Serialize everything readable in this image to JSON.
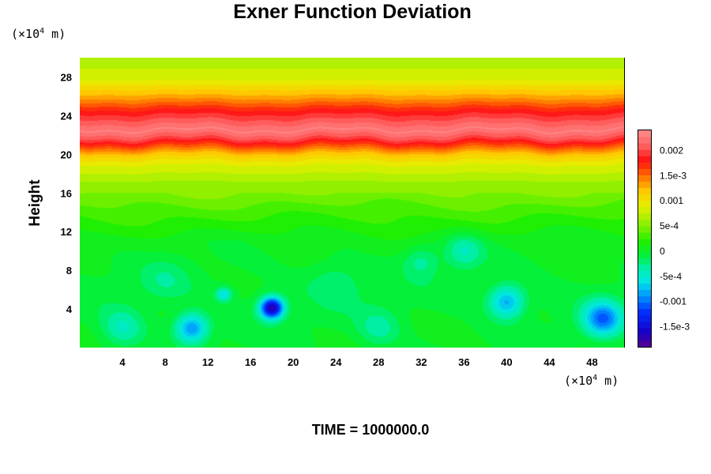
{
  "chart_data": {
    "type": "heatmap",
    "subtype": "filled-contour",
    "title": "Exner Function Deviation",
    "xlabel": "",
    "ylabel": "Height",
    "x_unit": "(×10⁴ m)",
    "y_unit": "(×10⁴ m)",
    "x_unit_base": "(×10",
    "x_unit_exp": "4",
    "x_unit_tail": " m)",
    "y_unit_base": "(×10",
    "y_unit_exp": "4",
    "y_unit_tail": " m)",
    "xlim": [
      0,
      51
    ],
    "ylim": [
      0,
      30
    ],
    "xticks": [
      4,
      8,
      12,
      16,
      20,
      24,
      28,
      32,
      36,
      40,
      44,
      48
    ],
    "yticks": [
      4,
      8,
      12,
      16,
      20,
      24,
      28
    ],
    "colorbar": {
      "min": -0.0019,
      "max": 0.0024,
      "ticks": [
        {
          "value": 0.002,
          "label": "0.002"
        },
        {
          "value": 0.0015,
          "label": "1.5e-3"
        },
        {
          "value": 0.001,
          "label": "0.001"
        },
        {
          "value": 0.0005,
          "label": "5e-4"
        },
        {
          "value": 0,
          "label": "0"
        },
        {
          "value": -0.0005,
          "label": "-5e-4"
        },
        {
          "value": -0.001,
          "label": "-0.001"
        },
        {
          "value": -0.0015,
          "label": "-1.5e-3"
        }
      ],
      "stops": [
        {
          "value": -0.0019,
          "color": "#5a0090"
        },
        {
          "value": -0.0016,
          "color": "#1800c8"
        },
        {
          "value": -0.0012,
          "color": "#0030ff"
        },
        {
          "value": -0.0009,
          "color": "#0090ff"
        },
        {
          "value": -0.0006,
          "color": "#00e6e6"
        },
        {
          "value": -0.0003,
          "color": "#00f0a0"
        },
        {
          "value": -0.0001,
          "color": "#00f040"
        },
        {
          "value": 0.0002,
          "color": "#20f000"
        },
        {
          "value": 0.0005,
          "color": "#80f000"
        },
        {
          "value": 0.0009,
          "color": "#e6f000"
        },
        {
          "value": 0.0012,
          "color": "#ffc800"
        },
        {
          "value": 0.0015,
          "color": "#ff7000"
        },
        {
          "value": 0.0018,
          "color": "#ff1010"
        },
        {
          "value": 0.0021,
          "color": "#ff6060"
        },
        {
          "value": 0.0024,
          "color": "#ff8c8c"
        }
      ]
    },
    "layers": [
      {
        "y": 0,
        "value": 0.0
      },
      {
        "y": 6,
        "value": -5e-05
      },
      {
        "y": 11,
        "value": 5e-05
      },
      {
        "y": 14,
        "value": 0.0003
      },
      {
        "y": 17,
        "value": 0.0006
      },
      {
        "y": 19,
        "value": 0.0009
      },
      {
        "y": 20,
        "value": 0.0012
      },
      {
        "y": 21,
        "value": 0.0017
      },
      {
        "y": 21.6,
        "value": 0.002
      },
      {
        "y": 22.5,
        "value": 0.0023
      },
      {
        "y": 23.3,
        "value": 0.0021
      },
      {
        "y": 24.5,
        "value": 0.0018
      },
      {
        "y": 26,
        "value": 0.0013
      },
      {
        "y": 28,
        "value": 0.0008
      },
      {
        "y": 30,
        "value": 0.0007
      }
    ],
    "features": [
      {
        "x": 10.5,
        "y": 2.0,
        "value": -0.0009,
        "radius": 1.5
      },
      {
        "x": 18.0,
        "y": 4.1,
        "value": -0.0017,
        "radius": 1.1
      },
      {
        "x": 40.0,
        "y": 4.7,
        "value": -0.0008,
        "radius": 1.6
      },
      {
        "x": 49.0,
        "y": 3.0,
        "value": -0.001,
        "radius": 1.8
      },
      {
        "x": 13.5,
        "y": 5.5,
        "value": -0.0006,
        "radius": 0.7
      },
      {
        "x": 4.0,
        "y": 2.0,
        "value": -0.0004,
        "radius": 2.0
      },
      {
        "x": 28.0,
        "y": 2.0,
        "value": -0.0003,
        "radius": 2.0
      },
      {
        "x": 36.0,
        "y": 10.0,
        "value": -0.0004,
        "radius": 1.8
      },
      {
        "x": 32.0,
        "y": 9.0,
        "value": -0.0003,
        "radius": 1.6
      },
      {
        "x": 24.0,
        "y": 7.0,
        "value": -0.0002,
        "radius": 2.5
      },
      {
        "x": 8.0,
        "y": 7.0,
        "value": -0.0002,
        "radius": 2.2
      }
    ],
    "footer": "TIME = 1000000.0"
  }
}
